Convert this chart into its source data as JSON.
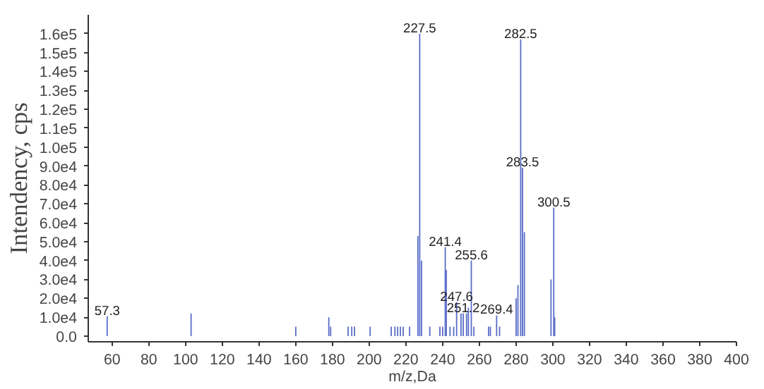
{
  "chart_data": {
    "type": "bar",
    "xlabel": "m/z,Da",
    "ylabel": "Intendency, cps",
    "x": [
      57.3,
      103.0,
      160.0,
      178.0,
      179.0,
      188.5,
      190.5,
      192.0,
      200.5,
      212.0,
      214.0,
      215.5,
      217.0,
      218.5,
      222.0,
      226.5,
      227.5,
      228.5,
      233.0,
      238.5,
      240.0,
      241.4,
      242.0,
      244.0,
      246.0,
      247.6,
      250.0,
      251.2,
      253.0,
      254.0,
      255.6,
      257.0,
      265.0,
      266.0,
      269.4,
      271.0,
      280.0,
      281.0,
      282.5,
      283.5,
      284.5,
      299.0,
      300.5,
      301.0
    ],
    "values": [
      10500,
      12000,
      5000,
      10000,
      5000,
      5000,
      5000,
      5000,
      5000,
      5000,
      5000,
      5000,
      5000,
      5000,
      5000,
      53000,
      160000,
      40000,
      5000,
      5000,
      5000,
      47000,
      35000,
      5000,
      5000,
      18000,
      12000,
      12000,
      12000,
      15000,
      40000,
      5000,
      5000,
      5000,
      11000,
      5000,
      20000,
      27000,
      157000,
      89000,
      55000,
      30000,
      68000,
      10000
    ],
    "annotations": [
      {
        "text": "57.3",
        "x": 57.3,
        "y": 10500
      },
      {
        "text": "227.5",
        "x": 227.5,
        "y": 160000
      },
      {
        "text": "241.4",
        "x": 241.4,
        "y": 47000
      },
      {
        "text": "247.6",
        "x": 247.6,
        "y": 18000
      },
      {
        "text": "251.2",
        "x": 251.2,
        "y": 12000
      },
      {
        "text": "255.6",
        "x": 255.6,
        "y": 40000
      },
      {
        "text": "269.4",
        "x": 269.4,
        "y": 11000
      },
      {
        "text": "282.5",
        "x": 282.5,
        "y": 157000
      },
      {
        "text": "283.5",
        "x": 283.5,
        "y": 89000
      },
      {
        "text": "300.5",
        "x": 300.5,
        "y": 68000
      }
    ],
    "color": "#5b6ec8",
    "xlim": [
      47,
      400
    ],
    "xticks": [
      60,
      80,
      100,
      120,
      140,
      160,
      180,
      200,
      220,
      240,
      260,
      280,
      300,
      320,
      340,
      360,
      380,
      400
    ],
    "ylim": [
      -3000,
      170000
    ],
    "yticks": [
      {
        "value": 0,
        "label": "0.0"
      },
      {
        "value": 10000,
        "label": "1.0e4"
      },
      {
        "value": 20000,
        "label": "2.0e4"
      },
      {
        "value": 30000,
        "label": "3.0e4"
      },
      {
        "value": 40000,
        "label": "4.0e4"
      },
      {
        "value": 50000,
        "label": "5.0e4"
      },
      {
        "value": 60000,
        "label": "6.0e4"
      },
      {
        "value": 70000,
        "label": "7.0e4"
      },
      {
        "value": 80000,
        "label": "8.0e4"
      },
      {
        "value": 90000,
        "label": "9.0e4"
      },
      {
        "value": 100000,
        "label": "1.0e5"
      },
      {
        "value": 110000,
        "label": "1.1e5"
      },
      {
        "value": 120000,
        "label": "1.2e5"
      },
      {
        "value": 130000,
        "label": "1.3e5"
      },
      {
        "value": 140000,
        "label": "1.4e5"
      },
      {
        "value": 150000,
        "label": "1.5e5"
      },
      {
        "value": 160000,
        "label": "1.6e5"
      }
    ],
    "grid": false
  }
}
